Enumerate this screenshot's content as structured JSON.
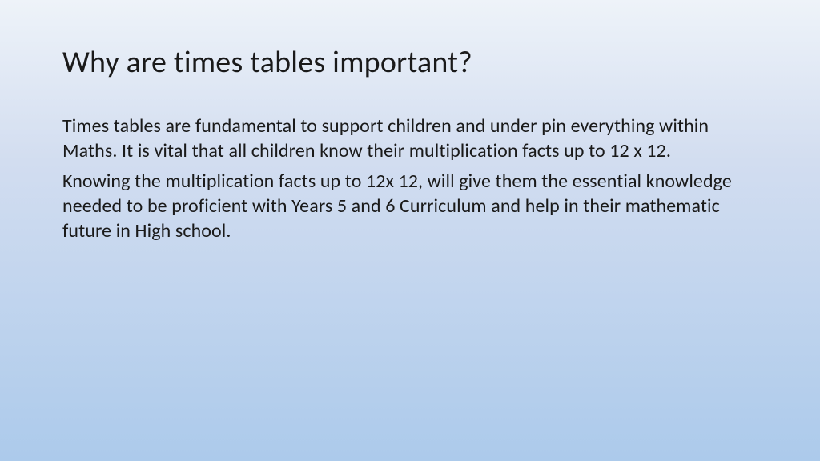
{
  "slide": {
    "title": "Why are times tables important?",
    "paragraphs": [
      "Times tables are fundamental to support children and under pin everything within Maths. It is vital that all children know their multiplication facts up to 12 x 12.",
      "Knowing the multiplication facts up to 12x 12, will give them the essential knowledge needed to be proficient with Years 5 and 6 Curriculum and help in their mathematic future in High school."
    ]
  },
  "style": {
    "background_gradient_top": "#eef3f9",
    "background_gradient_mid": "#d2ddf0",
    "background_gradient_bottom": "#accaeb",
    "title_fontsize": 38,
    "title_color": "#1a1a1a",
    "body_fontsize": 24,
    "body_color": "#1a1a1a",
    "font_family": "Calibri"
  }
}
